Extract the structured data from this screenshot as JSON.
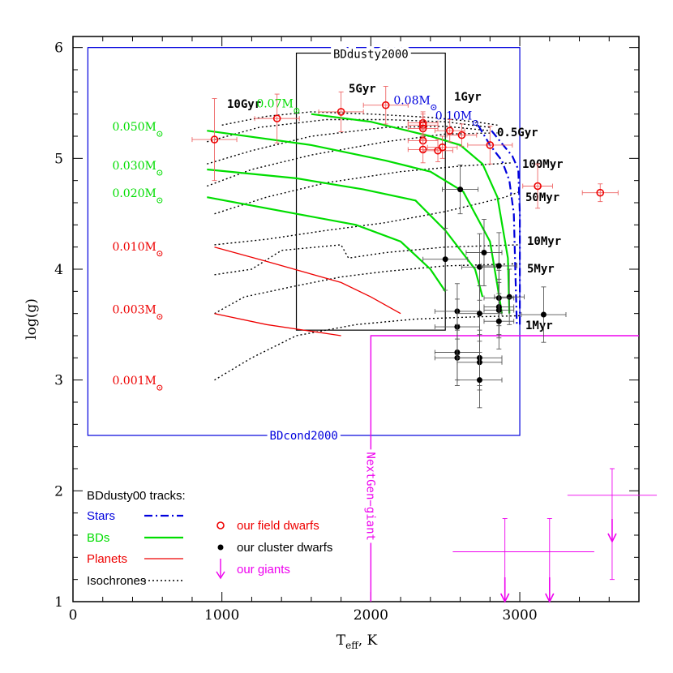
{
  "colors": {
    "black": "#000000",
    "blue": "#0000dd",
    "green": "#00dd00",
    "red": "#ee0000",
    "magenta": "#ee00ee",
    "gray": "#555555"
  },
  "chart_data": {
    "type": "scatter",
    "xlabel": "T",
    "xlabel_sub": "eff",
    "xlabel_unit": ",  K",
    "ylabel": "log(g)",
    "xlim": [
      0,
      3800
    ],
    "ylim": [
      1,
      6.1
    ],
    "x_ticks": [
      0,
      1000,
      2000,
      3000
    ],
    "y_ticks": [
      1,
      2,
      3,
      4,
      5,
      6
    ],
    "grid": false,
    "regions": [
      {
        "name": "BDcond2000",
        "x": [
          100,
          3000
        ],
        "y": [
          2.5,
          6.0
        ]
      },
      {
        "name": "BDdusty2000",
        "x": [
          1500,
          2500
        ],
        "y": [
          3.45,
          5.95
        ]
      }
    ],
    "nextgen_giant": {
      "label": "NextGen−giant",
      "x_start": 2000,
      "y_bottom": 1.0,
      "y_top": 3.4,
      "x_end": 3800
    },
    "isochrones": [
      {
        "label": "10Gyr",
        "points": [
          [
            1000,
            5.3
          ],
          [
            1300,
            5.38
          ],
          [
            1600,
            5.42
          ],
          [
            2000,
            5.4
          ],
          [
            2400,
            5.37
          ],
          [
            2700,
            5.33
          ],
          [
            2850,
            5.3
          ]
        ]
      },
      {
        "label": "5Gyr",
        "points": [
          [
            900,
            5.15
          ],
          [
            1250,
            5.28
          ],
          [
            1700,
            5.35
          ],
          [
            2100,
            5.35
          ],
          [
            2500,
            5.33
          ],
          [
            2800,
            5.28
          ]
        ]
      },
      {
        "label": "1Gyr",
        "points": [
          [
            900,
            4.95
          ],
          [
            1200,
            5.07
          ],
          [
            1600,
            5.2
          ],
          [
            2100,
            5.28
          ],
          [
            2500,
            5.29
          ],
          [
            2800,
            5.25
          ]
        ]
      },
      {
        "label": "0.5Gyr",
        "points": [
          [
            900,
            4.75
          ],
          [
            1200,
            4.9
          ],
          [
            1600,
            5.03
          ],
          [
            2100,
            5.15
          ],
          [
            2500,
            5.22
          ],
          [
            2850,
            5.23
          ]
        ]
      },
      {
        "label": "100Myr",
        "points": [
          [
            950,
            4.5
          ],
          [
            1300,
            4.65
          ],
          [
            1700,
            4.78
          ],
          [
            2200,
            4.88
          ],
          [
            2600,
            4.93
          ],
          [
            2950,
            4.96
          ]
        ]
      },
      {
        "label": "50Myr",
        "points": [
          [
            950,
            4.22
          ],
          [
            1300,
            4.27
          ],
          [
            1700,
            4.35
          ],
          [
            2100,
            4.42
          ],
          [
            2500,
            4.52
          ],
          [
            2900,
            4.65
          ],
          [
            3000,
            4.7
          ]
        ]
      },
      {
        "label": "10Myr",
        "points": [
          [
            950,
            3.95
          ],
          [
            1200,
            4.0
          ],
          [
            1400,
            4.17
          ],
          [
            1800,
            4.22
          ],
          [
            1850,
            4.1
          ],
          [
            2100,
            4.15
          ],
          [
            2500,
            4.2
          ],
          [
            3000,
            4.22
          ]
        ]
      },
      {
        "label": "5Myr",
        "points": [
          [
            950,
            3.6
          ],
          [
            1150,
            3.75
          ],
          [
            1500,
            3.85
          ],
          [
            1800,
            3.93
          ],
          [
            2100,
            3.98
          ],
          [
            2500,
            4.03
          ],
          [
            3000,
            4.05
          ]
        ]
      },
      {
        "label": "1Myr",
        "points": [
          [
            950,
            3.0
          ],
          [
            1200,
            3.2
          ],
          [
            1500,
            3.4
          ],
          [
            1900,
            3.5
          ],
          [
            2300,
            3.55
          ],
          [
            2700,
            3.57
          ],
          [
            3000,
            3.58
          ]
        ]
      }
    ],
    "isochrone_label_colors": {
      "10Gyr": "#000000",
      "5Gyr": "#000000",
      "1Gyr": "#000000",
      "0.5Gyr": "#000000",
      "100Myr": "#000000",
      "50Myr": "#000000",
      "10Myr": "#000000",
      "5Myr": "#000000",
      "1Myr": "#000000"
    },
    "star_tracks": [
      {
        "label": "0.10M",
        "points": [
          [
            2810,
            5.25
          ],
          [
            2870,
            5.15
          ],
          [
            2950,
            5.02
          ],
          [
            2990,
            4.9
          ],
          [
            3000,
            4.5
          ],
          [
            3000,
            4.0
          ],
          [
            3000,
            3.5
          ],
          [
            3000,
            3.5
          ]
        ]
      },
      {
        "label": "0.08M",
        "points": [
          [
            2720,
            5.3
          ],
          [
            2800,
            5.12
          ],
          [
            2880,
            4.98
          ],
          [
            2930,
            4.8
          ],
          [
            2960,
            4.5
          ],
          [
            2970,
            4.0
          ],
          [
            2980,
            3.5
          ]
        ]
      }
    ],
    "bd_tracks": [
      {
        "label": "0.07M",
        "points": [
          [
            1600,
            5.4
          ],
          [
            2000,
            5.33
          ],
          [
            2400,
            5.2
          ],
          [
            2600,
            5.12
          ],
          [
            2750,
            4.95
          ],
          [
            2850,
            4.65
          ],
          [
            2920,
            4.1
          ],
          [
            2930,
            3.6
          ]
        ]
      },
      {
        "label": "0.050M",
        "points": [
          [
            900,
            5.25
          ],
          [
            1600,
            5.12
          ],
          [
            2100,
            4.98
          ],
          [
            2400,
            4.88
          ],
          [
            2620,
            4.7
          ],
          [
            2800,
            4.25
          ],
          [
            2850,
            3.85
          ],
          [
            2880,
            3.6
          ]
        ]
      },
      {
        "label": "0.030M",
        "points": [
          [
            900,
            4.9
          ],
          [
            1500,
            4.82
          ],
          [
            1950,
            4.72
          ],
          [
            2300,
            4.62
          ],
          [
            2500,
            4.35
          ],
          [
            2700,
            4.0
          ],
          [
            2750,
            3.75
          ]
        ]
      },
      {
        "label": "0.020M",
        "points": [
          [
            900,
            4.65
          ],
          [
            1500,
            4.5
          ],
          [
            1900,
            4.4
          ],
          [
            2200,
            4.25
          ],
          [
            2400,
            4.0
          ],
          [
            2500,
            3.8
          ]
        ]
      }
    ],
    "planet_tracks": [
      {
        "label": "0.010M",
        "points": [
          [
            950,
            4.2
          ],
          [
            1300,
            4.07
          ],
          [
            1800,
            3.88
          ],
          [
            2000,
            3.75
          ],
          [
            2200,
            3.6
          ]
        ]
      },
      {
        "label": "0.003M",
        "points": [
          [
            950,
            3.6
          ],
          [
            1300,
            3.5
          ],
          [
            1800,
            3.4
          ]
        ]
      }
    ],
    "track_labels": [
      {
        "text": "0.050M",
        "color": "green",
        "x": 560,
        "y": 5.25
      },
      {
        "text": "0.030M",
        "color": "green",
        "x": 560,
        "y": 4.9
      },
      {
        "text": "0.020M",
        "color": "green",
        "x": 560,
        "y": 4.65
      },
      {
        "text": "0.010M",
        "color": "red",
        "x": 560,
        "y": 4.17
      },
      {
        "text": "0.003M",
        "color": "red",
        "x": 560,
        "y": 3.6
      },
      {
        "text": "0.001M",
        "color": "red",
        "x": 560,
        "y": 2.96
      },
      {
        "text": "0.07M",
        "color": "green",
        "x": 1480,
        "y": 5.46
      },
      {
        "text": "0.08M",
        "color": "blue",
        "x": 2400,
        "y": 5.49
      },
      {
        "text": "0.10M",
        "color": "blue",
        "x": 2680,
        "y": 5.35
      }
    ],
    "field_dwarfs": [
      {
        "x": 950,
        "y": 5.17,
        "xerr": 150,
        "yerr": 0.37
      },
      {
        "x": 1370,
        "y": 5.36,
        "xerr": 150,
        "yerr": 0.22
      },
      {
        "x": 1800,
        "y": 5.42,
        "xerr": 150,
        "yerr": 0.18
      },
      {
        "x": 2100,
        "y": 5.48,
        "xerr": 150,
        "yerr": 0.17
      },
      {
        "x": 2350,
        "y": 5.32,
        "xerr": 100,
        "yerr": 0.1
      },
      {
        "x": 2350,
        "y": 5.3,
        "xerr": 100,
        "yerr": 0.1
      },
      {
        "x": 2350,
        "y": 5.27,
        "xerr": 100,
        "yerr": 0.1
      },
      {
        "x": 2350,
        "y": 5.16,
        "xerr": 100,
        "yerr": 0.1
      },
      {
        "x": 2350,
        "y": 5.08,
        "xerr": 100,
        "yerr": 0.12
      },
      {
        "x": 2450,
        "y": 5.07,
        "xerr": 100,
        "yerr": 0.1
      },
      {
        "x": 2480,
        "y": 5.1,
        "xerr": 100,
        "yerr": 0.1
      },
      {
        "x": 2530,
        "y": 5.25,
        "xerr": 100,
        "yerr": 0.1
      },
      {
        "x": 2610,
        "y": 5.21,
        "xerr": 100,
        "yerr": 0.1
      },
      {
        "x": 2800,
        "y": 5.12,
        "xerr": 150,
        "yerr": 0.17
      },
      {
        "x": 3120,
        "y": 4.75,
        "xerr": 100,
        "yerr": 0.2
      },
      {
        "x": 3540,
        "y": 4.69,
        "xerr": 120,
        "yerr": 0.08
      }
    ],
    "cluster_dwarfs": [
      {
        "x": 2600,
        "y": 4.72,
        "xerr": 120,
        "yerr": 0.22
      },
      {
        "x": 2500,
        "y": 4.09,
        "xerr": 150,
        "yerr": 0.28
      },
      {
        "x": 2760,
        "y": 4.15,
        "xerr": 120,
        "yerr": 0.3
      },
      {
        "x": 2730,
        "y": 4.02,
        "xerr": 120,
        "yerr": 0.3
      },
      {
        "x": 2860,
        "y": 4.03,
        "xerr": 120,
        "yerr": 0.3
      },
      {
        "x": 2930,
        "y": 3.75,
        "xerr": 100,
        "yerr": 0.25
      },
      {
        "x": 2860,
        "y": 3.74,
        "xerr": 100,
        "yerr": 0.25
      },
      {
        "x": 2860,
        "y": 3.66,
        "xerr": 100,
        "yerr": 0.25
      },
      {
        "x": 2860,
        "y": 3.63,
        "xerr": 100,
        "yerr": 0.25
      },
      {
        "x": 2580,
        "y": 3.62,
        "xerr": 150,
        "yerr": 0.25
      },
      {
        "x": 2730,
        "y": 3.6,
        "xerr": 150,
        "yerr": 0.25
      },
      {
        "x": 2860,
        "y": 3.53,
        "xerr": 100,
        "yerr": 0.25
      },
      {
        "x": 2580,
        "y": 3.48,
        "xerr": 150,
        "yerr": 0.25
      },
      {
        "x": 3160,
        "y": 3.59,
        "xerr": 150,
        "yerr": 0.25
      },
      {
        "x": 2580,
        "y": 3.25,
        "xerr": 150,
        "yerr": 0.25
      },
      {
        "x": 2580,
        "y": 3.2,
        "xerr": 150,
        "yerr": 0.25
      },
      {
        "x": 2730,
        "y": 3.2,
        "xerr": 150,
        "yerr": 0.25
      },
      {
        "x": 2730,
        "y": 3.16,
        "xerr": 150,
        "yerr": 0.25
      },
      {
        "x": 2730,
        "y": 3.0,
        "xerr": 150,
        "yerr": 0.25
      }
    ],
    "giants": [
      {
        "x": 2900,
        "y": 1.0,
        "xerr": 350,
        "yerr_up": 0.75
      },
      {
        "x": 3200,
        "y": 1.0,
        "xerr": 300,
        "yerr_up": 0.75
      },
      {
        "x": 3620,
        "y": 1.6,
        "xerr": 300,
        "yerr_up": 0.6,
        "yerr_down": 0.4
      }
    ],
    "legend": {
      "title": "BDdusty00 tracks:",
      "placement": "bottom-left",
      "items": [
        {
          "label": "Stars",
          "color": "blue"
        },
        {
          "label": "BDs",
          "color": "green"
        },
        {
          "label": "Planets",
          "color": "red"
        },
        {
          "label": "Isochrones",
          "color": "black"
        }
      ],
      "markers": [
        {
          "label": "our field dwarfs",
          "color": "red"
        },
        {
          "label": "our cluster dwarfs",
          "color": "black"
        },
        {
          "label": "our giants",
          "color": "magenta"
        }
      ]
    }
  }
}
